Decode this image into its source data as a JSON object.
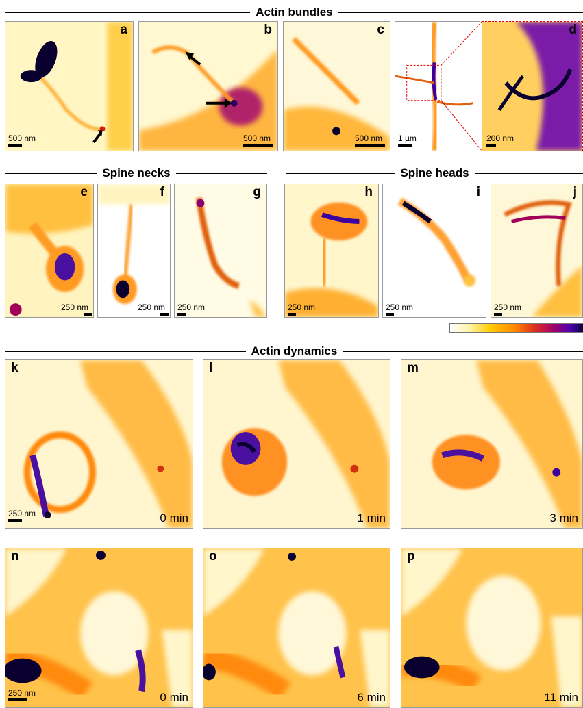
{
  "sections": {
    "bundles": "Actin bundles",
    "necks": "Spine necks",
    "heads": "Spine heads",
    "dynamics": "Actin dynamics"
  },
  "panels": {
    "a": {
      "letter": "a",
      "scale": "500 nm"
    },
    "b": {
      "letter": "b",
      "scale": "500 nm"
    },
    "c": {
      "letter": "c",
      "scale": "500 nm"
    },
    "c2": {
      "scale": "1 µm"
    },
    "d": {
      "letter": "d",
      "scale": "200 nm"
    },
    "e": {
      "letter": "e",
      "scale": "250 nm"
    },
    "f": {
      "letter": "f",
      "scale": "250 nm"
    },
    "g": {
      "letter": "g",
      "scale": "250 nm"
    },
    "h": {
      "letter": "h",
      "scale": "250 nm"
    },
    "i": {
      "letter": "i",
      "scale": "250 nm"
    },
    "j": {
      "letter": "j",
      "scale": "250 nm"
    },
    "k": {
      "letter": "k",
      "scale": "250 nm",
      "time": "0 min"
    },
    "l": {
      "letter": "l",
      "time": "1 min"
    },
    "m": {
      "letter": "m",
      "time": "3 min"
    },
    "n": {
      "letter": "n",
      "scale": "250 nm",
      "time": "0 min"
    },
    "o": {
      "letter": "o",
      "time": "6 min"
    },
    "p": {
      "letter": "p",
      "time": "11 min"
    }
  },
  "colors": {
    "background": "#ffffff",
    "low": "#fff0a0",
    "mid": "#ff9a00",
    "high": "#6a00a0",
    "max": "#0a0030"
  }
}
